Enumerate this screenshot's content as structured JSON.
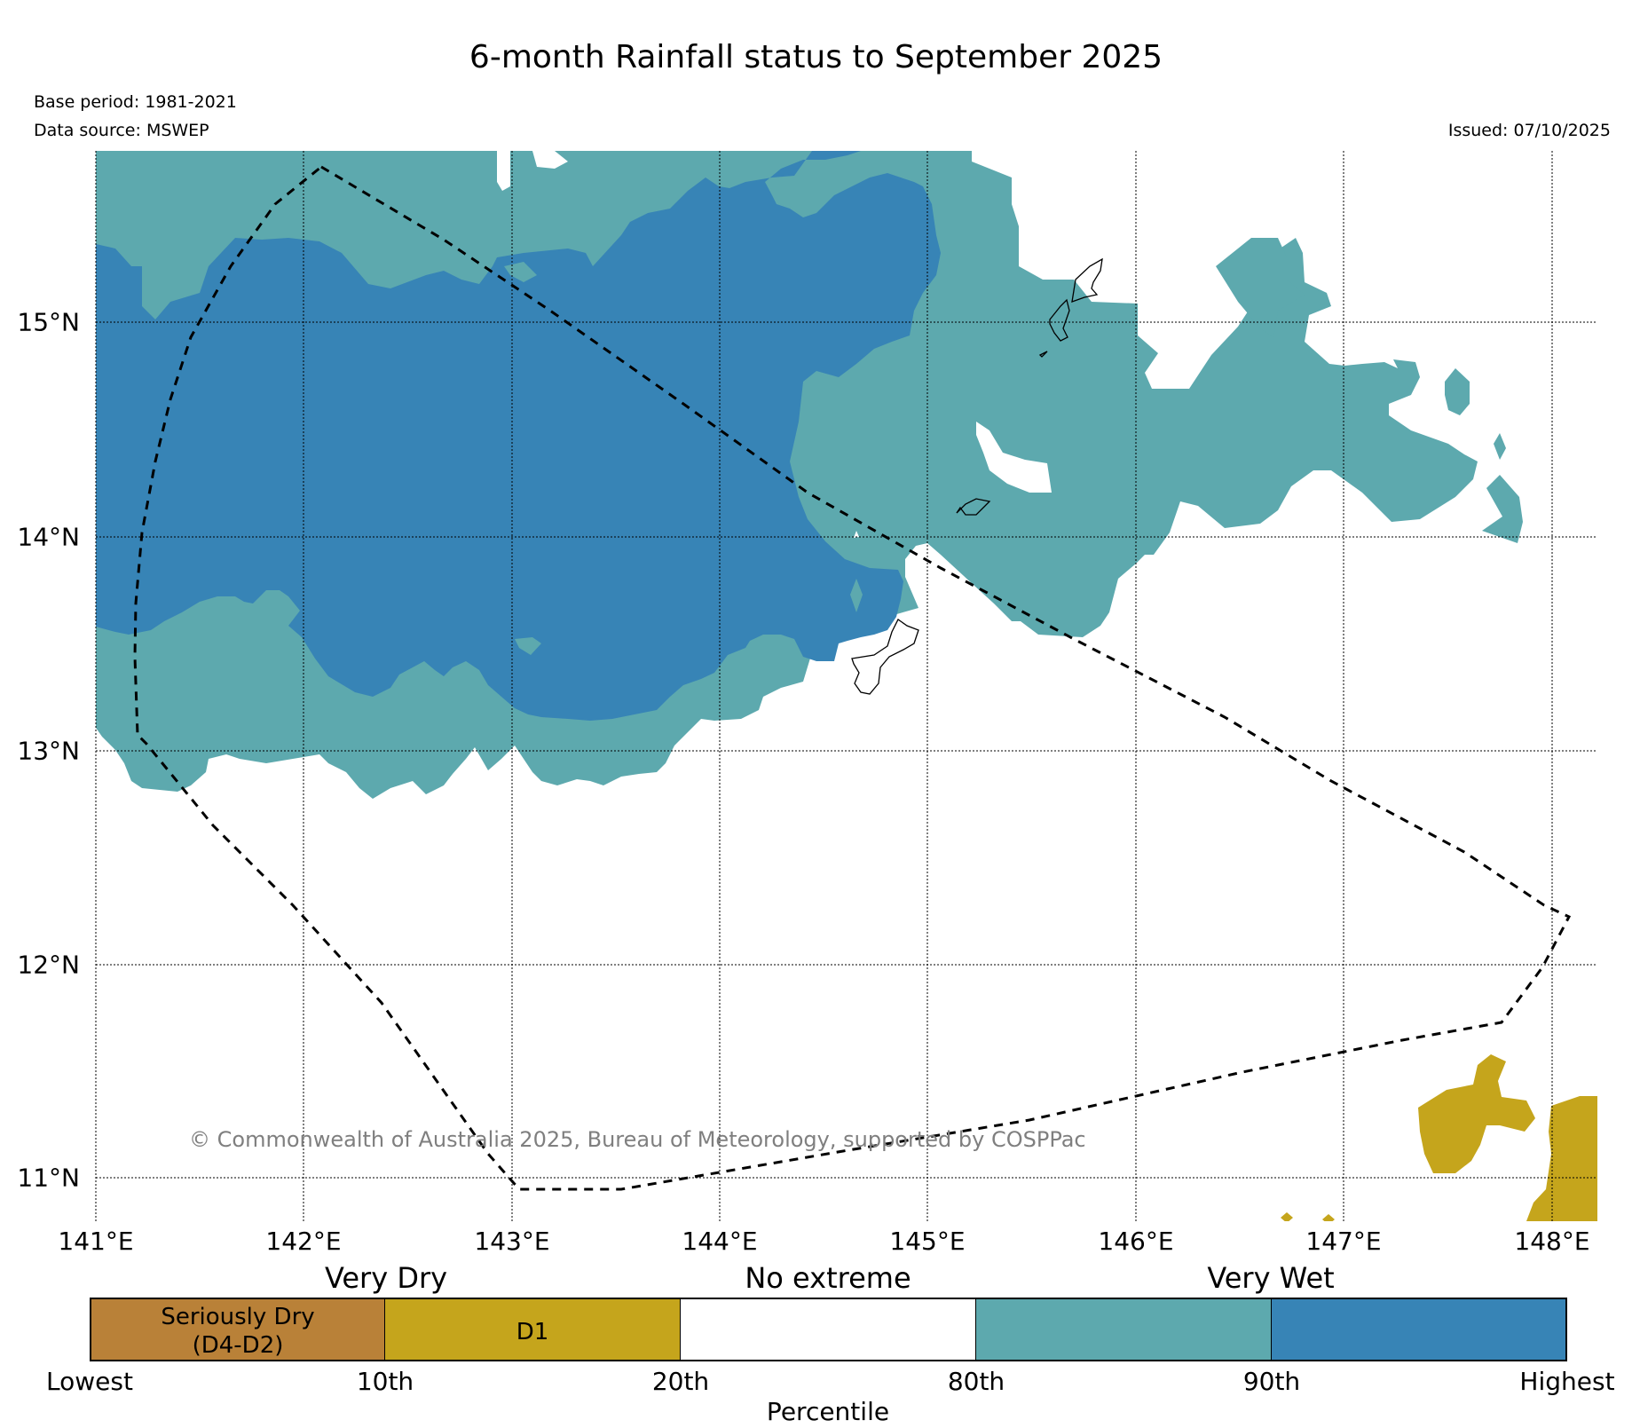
{
  "title": "6-month Rainfall status to September 2025",
  "base_period": "Base period: 1981-2021",
  "data_source": "Data source: MSWEP",
  "issued": "Issued: 07/10/2025",
  "copyright": "© Commonwealth of Australia 2025, Bureau of Meteorology, supported by COSPPac",
  "map": {
    "lon_range": [
      141.0,
      148.2
    ],
    "lat_range": [
      10.8,
      15.8
    ],
    "lon_labels": [
      "141°E",
      "142°E",
      "143°E",
      "144°E",
      "145°E",
      "146°E",
      "147°E",
      "148°E"
    ],
    "lat_labels": [
      "15°N",
      "14°N",
      "13°N",
      "12°N",
      "11°N"
    ],
    "colors": {
      "very_wet": "#3784b6",
      "wet": "#5da9ae",
      "d1": "#c5a51c",
      "seriously_dry": "#b98138"
    }
  },
  "legend": {
    "categories": [
      "Very Dry",
      "No extreme",
      "Very Wet"
    ],
    "bins": [
      {
        "label": "Seriously Dry\n(D4-D2)",
        "color": "#b98138"
      },
      {
        "label": "D1",
        "color": "#c5a51c"
      },
      {
        "label": "",
        "color": "#ffffff"
      },
      {
        "label": "",
        "color": "#5da9ae"
      },
      {
        "label": "",
        "color": "#3784b6"
      }
    ],
    "ticks": [
      "Lowest",
      "10th",
      "20th",
      "80th",
      "90th",
      "Highest"
    ],
    "axis_label": "Percentile"
  }
}
